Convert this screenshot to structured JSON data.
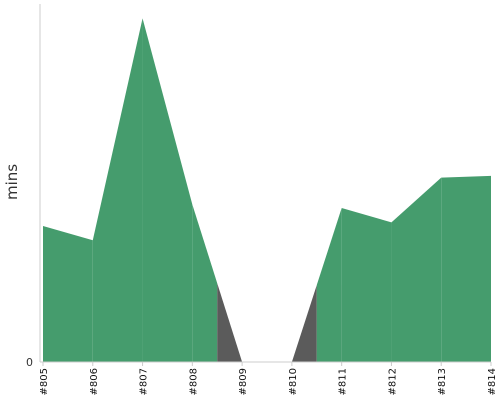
{
  "chart_data": {
    "type": "area",
    "title": "",
    "xlabel": "",
    "ylabel": "mins",
    "categories": [
      "#805",
      "#806",
      "#807",
      "#808",
      "#809",
      "#810",
      "#811",
      "#812",
      "#813",
      "#814"
    ],
    "ylim": [
      0,
      100
    ],
    "y_tick_labels": [
      "0"
    ],
    "grid": false,
    "legend": "none",
    "series": [
      {
        "values": [
          38,
          34,
          96,
          44,
          0,
          0,
          43,
          39,
          51.5,
          52
        ],
        "color": "#459c6d"
      }
    ],
    "missing_color": "#5b5b5b",
    "missing_categories": [
      "#809",
      "#810"
    ]
  }
}
